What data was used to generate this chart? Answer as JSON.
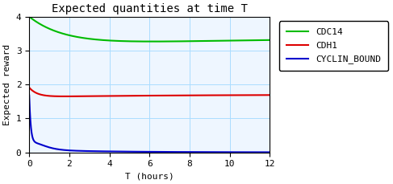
{
  "title": "Expected quantities at time T",
  "xlabel": "T (hours)",
  "ylabel": "Expected reward",
  "xlim": [
    0,
    12
  ],
  "ylim": [
    0,
    4
  ],
  "yticks": [
    0,
    1,
    2,
    3,
    4
  ],
  "xticks": [
    0,
    2,
    4,
    6,
    8,
    10,
    12
  ],
  "grid_color": "#aaddff",
  "background_color": "#eef6ff",
  "line_colors": {
    "CDC14": "#00bb00",
    "CDH1": "#dd0000",
    "CYCLIN_BOUND": "#0000cc"
  },
  "figsize": [
    4.87,
    2.29
  ],
  "dpi": 100
}
